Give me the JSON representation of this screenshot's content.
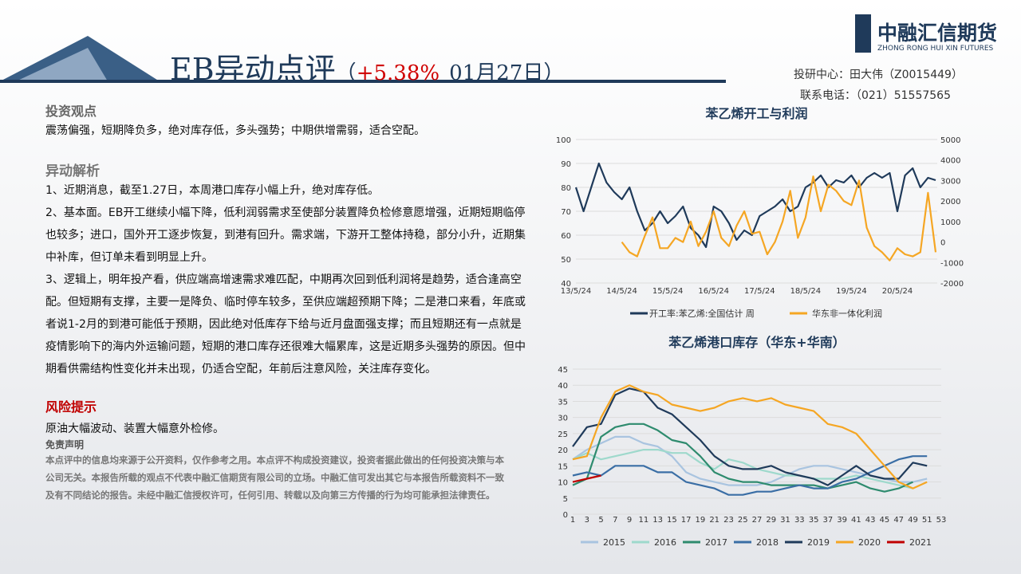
{
  "header": {
    "title": "EB异动点评",
    "paren_open": "（",
    "change": "+5.38%",
    "date": "01月27日",
    "paren_close": "）",
    "contact": "投研中心：田大伟（Z0015449）",
    "phone": "联系电话：（021）51557565",
    "logo_cn": "中融汇信期货",
    "logo_en": "ZHONG RONG HUI XIN FUTURES"
  },
  "view": {
    "heading": "投资观点",
    "text": "震荡偏强，短期降负多，绝对库存低，多头强势；中期供增需弱，适合空配。"
  },
  "analysis": {
    "heading": "异动解析",
    "items": [
      "1、近期消息，截至1.27日，本周港口库存小幅上升，绝对库存低。",
      "2、基本面。EB开工继续小幅下降，低利润弱需求至使部分装置降负检修意愿增强，近期短期临停也较多；进口，国外开工逐步恢复，到港有回升。需求端，下游开工整体持稳，部分小升，近期集中补库，但订单未看到明显上升。",
      "3、逻辑上，明年投产看，供应端高增速需求难匹配，中期再次回到低利润将是趋势，适合逢高空配。但短期有支撑，主要一是降负、临时停车较多，至供应端超预期下降；二是港口来看，年底或者说1-2月的到港可能低于预期，因此绝对低库存下给与近月盘面强支撑；而且短期还有一点就是疫情影响下的海内外运输问题，短期的港口库存还很难大幅累库，这是近期多头强势的原因。但中期看供需结构性变化并未出现，仍适合空配，年前后注意风险，关注库存变化。"
    ]
  },
  "risk": {
    "heading": "风险提示",
    "text": "原油大幅波动、装置大幅意外检修。"
  },
  "disclaimer": {
    "heading": "免责声明",
    "text": "本点评中的信息均来源于公开资料，仅作参考之用。本点评不构成投资建议，投资者据此做出的任何投资决策与本公司无关。本报告所载的观点不代表中融汇信期货有限公司的立场。中融汇信可发出其它与本报告所载资料不一致及有不同结论的报告。未经中融汇信授权许可，任何引用、转载以及向第三方传播的行为均可能承担法律责任。"
  },
  "chart_data": [
    {
      "type": "line",
      "title": "苯乙烯开工与利润",
      "categories": [
        "13/5/24",
        null,
        null,
        null,
        null,
        null,
        "14/5/24",
        null,
        null,
        null,
        null,
        null,
        "15/5/24",
        null,
        null,
        null,
        null,
        null,
        "16/5/24",
        null,
        null,
        null,
        null,
        null,
        "17/5/24",
        null,
        null,
        null,
        null,
        null,
        "18/5/24",
        null,
        null,
        null,
        null,
        null,
        "19/5/24",
        null,
        null,
        null,
        null,
        null,
        "20/5/24",
        null,
        null,
        null,
        null,
        null
      ],
      "ylim": [
        40,
        100
      ],
      "yticks": [
        40,
        50,
        60,
        70,
        80,
        90,
        100
      ],
      "y2lim": [
        -2000,
        5000
      ],
      "y2ticks": [
        -2000,
        -1000,
        0,
        1000,
        2000,
        3000,
        4000,
        5000
      ],
      "grid": true,
      "series": [
        {
          "name": "开工率:苯乙烯:全国估计 周",
          "color": "#1f3a5a",
          "values": [
            80,
            70,
            80,
            90,
            82,
            78,
            75,
            80,
            70,
            62,
            65,
            70,
            65,
            68,
            72,
            63,
            60,
            55,
            72,
            70,
            65,
            58,
            62,
            60,
            68,
            70,
            72,
            75,
            70,
            72,
            80,
            82,
            85,
            80,
            83,
            82,
            85,
            80,
            84,
            86,
            84,
            86,
            70,
            85,
            88,
            80,
            84,
            83
          ]
        },
        {
          "name": "华东非一体化利润",
          "color": "#f5a623",
          "axis": "y2",
          "values": [
            null,
            null,
            null,
            null,
            null,
            null,
            0,
            -500,
            -700,
            300,
            1200,
            -300,
            -300,
            200,
            0,
            1000,
            -200,
            500,
            1500,
            200,
            -200,
            800,
            1500,
            400,
            500,
            -600,
            0,
            1000,
            2500,
            200,
            1200,
            3200,
            1500,
            2800,
            2500,
            2000,
            1800,
            3000,
            700,
            -200,
            -500,
            -900,
            -300,
            -600,
            -700,
            -500,
            2400,
            -500
          ]
        }
      ]
    },
    {
      "type": "line",
      "title": "苯乙烯港口库存（华东+华南）",
      "categories": [
        1,
        3,
        5,
        7,
        9,
        11,
        13,
        15,
        17,
        19,
        21,
        23,
        25,
        27,
        29,
        31,
        33,
        35,
        37,
        39,
        41,
        43,
        45,
        47,
        49,
        51,
        53
      ],
      "ylim": [
        0,
        45
      ],
      "yticks": [
        0,
        5,
        10,
        15,
        20,
        25,
        30,
        35,
        40,
        45
      ],
      "grid": true,
      "series": [
        {
          "name": "2015",
          "color": "#a9c4e0",
          "values": [
            17,
            20,
            22,
            24,
            24,
            22,
            21,
            18,
            13,
            11,
            10,
            9,
            9,
            9,
            10,
            12,
            14,
            15,
            15,
            14,
            13,
            12,
            11,
            10,
            10,
            11,
            null
          ]
        },
        {
          "name": "2016",
          "color": "#9ed9cc",
          "values": [
            17,
            19,
            17,
            18,
            19,
            20,
            20,
            19,
            19,
            16,
            14,
            17,
            16,
            14,
            13,
            12,
            12,
            11,
            11,
            11,
            12,
            11,
            10,
            9,
            8,
            null,
            null
          ]
        },
        {
          "name": "2017",
          "color": "#2e8b6e",
          "values": [
            9,
            11,
            24,
            27,
            28,
            28,
            26,
            23,
            22,
            18,
            13,
            11,
            10,
            10,
            9,
            9,
            9,
            9,
            8,
            9,
            10,
            8,
            7,
            8,
            10,
            null,
            null
          ]
        },
        {
          "name": "2018",
          "color": "#3a6ea5",
          "values": [
            12,
            13,
            12,
            15,
            15,
            15,
            13,
            13,
            10,
            9,
            8,
            6,
            6,
            7,
            7,
            8,
            9,
            8,
            8,
            10,
            11,
            13,
            15,
            17,
            18,
            18,
            null
          ]
        },
        {
          "name": "2019",
          "color": "#1f3a5a",
          "values": [
            21,
            27,
            28,
            37,
            39,
            38,
            33,
            31,
            27,
            23,
            18,
            15,
            14,
            14,
            15,
            13,
            12,
            11,
            9,
            12,
            15,
            12,
            11,
            11,
            16,
            15,
            null
          ]
        },
        {
          "name": "2020",
          "color": "#f5a623",
          "values": [
            17,
            18,
            30,
            38,
            40,
            38,
            37,
            34,
            33,
            32,
            33,
            35,
            36,
            35,
            36,
            34,
            33,
            32,
            28,
            27,
            25,
            20,
            15,
            10,
            8,
            10,
            null
          ]
        },
        {
          "name": "2021",
          "color": "#c00000",
          "values": [
            10,
            11,
            12,
            null,
            null,
            null,
            null,
            null,
            null,
            null,
            null,
            null,
            null,
            null,
            null,
            null,
            null,
            null,
            null,
            null,
            null,
            null,
            null,
            null,
            null,
            null,
            null
          ]
        }
      ]
    }
  ]
}
